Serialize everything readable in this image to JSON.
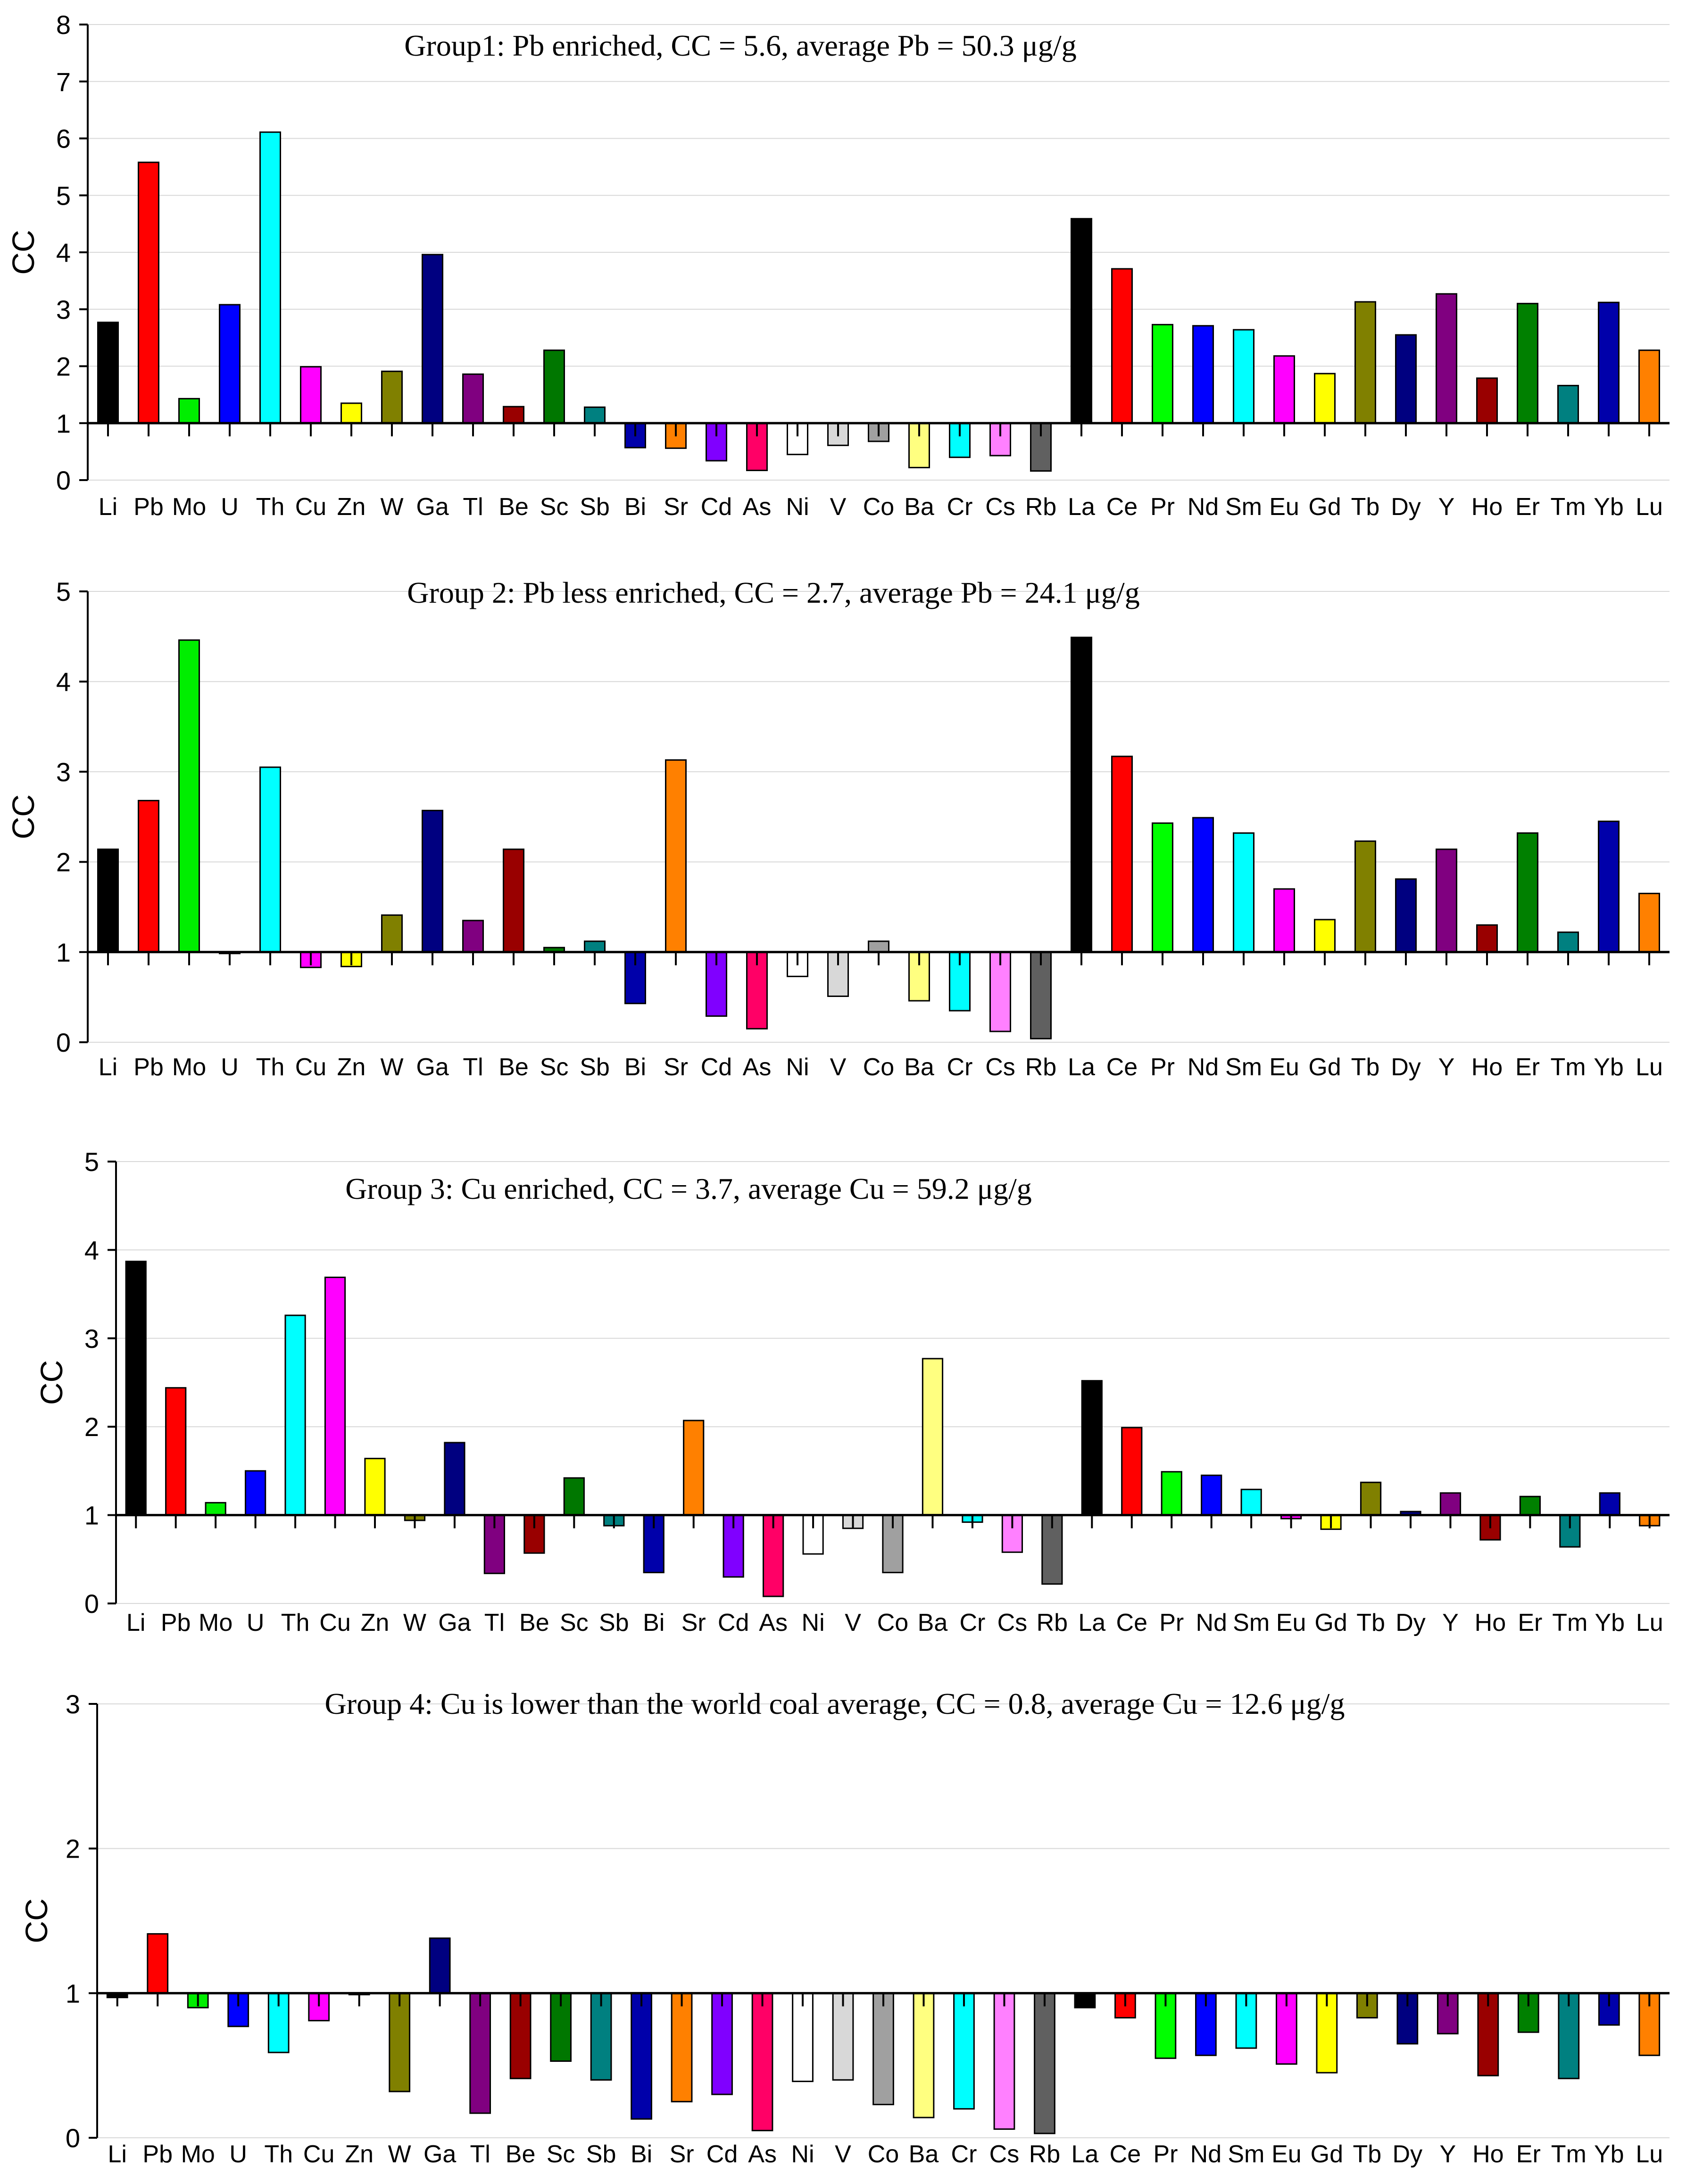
{
  "figure": {
    "type": "bar",
    "description_panels": 4
  },
  "chart_data": [
    {
      "type": "bar",
      "title": "Group1: Pb enriched, CC = 5.6, average Pb = 50.3 μg/g",
      "xlabel": "",
      "ylabel": "CC",
      "ylim": [
        0,
        8
      ],
      "yticks": [
        0,
        1,
        2,
        3,
        4,
        5,
        6,
        7,
        8
      ],
      "baseline": 1,
      "grid": true,
      "categories": [
        "Li",
        "Pb",
        "Mo",
        "U",
        "Th",
        "Cu",
        "Zn",
        "W",
        "Ga",
        "Tl",
        "Be",
        "Sc",
        "Sb",
        "Bi",
        "Sr",
        "Cd",
        "As",
        "Ni",
        "V",
        "Co",
        "Ba",
        "Cr",
        "Cs",
        "Rb",
        "La",
        "Ce",
        "Pr",
        "Nd",
        "Sm",
        "Eu",
        "Gd",
        "Tb",
        "Dy",
        "Y",
        "Ho",
        "Er",
        "Tm",
        "Yb",
        "Lu"
      ],
      "values": [
        2.77,
        5.58,
        1.43,
        3.08,
        6.11,
        1.99,
        1.35,
        1.91,
        3.96,
        1.86,
        1.29,
        2.28,
        1.28,
        0.57,
        0.56,
        0.34,
        0.17,
        0.45,
        0.61,
        0.68,
        0.22,
        0.4,
        0.43,
        0.16,
        4.59,
        3.71,
        2.73,
        2.71,
        2.64,
        2.18,
        1.87,
        3.13,
        2.55,
        3.27,
        1.79,
        3.1,
        1.66,
        3.12,
        2.28
      ]
    },
    {
      "type": "bar",
      "title": "Group 2: Pb less enriched, CC = 2.7, average Pb = 24.1 μg/g",
      "xlabel": "",
      "ylabel": "CC",
      "ylim": [
        0,
        5
      ],
      "yticks": [
        0,
        1,
        2,
        3,
        4,
        5
      ],
      "baseline": 1,
      "grid": true,
      "categories": [
        "Li",
        "Pb",
        "Mo",
        "U",
        "Th",
        "Cu",
        "Zn",
        "W",
        "Ga",
        "Tl",
        "Be",
        "Sc",
        "Sb",
        "Bi",
        "Sr",
        "Cd",
        "As",
        "Ni",
        "V",
        "Co",
        "Ba",
        "Cr",
        "Cs",
        "Rb",
        "La",
        "Ce",
        "Pr",
        "Nd",
        "Sm",
        "Eu",
        "Gd",
        "Tb",
        "Dy",
        "Y",
        "Ho",
        "Er",
        "Tm",
        "Yb",
        "Lu"
      ],
      "values": [
        2.14,
        2.68,
        4.46,
        1.0,
        3.05,
        0.83,
        0.84,
        1.41,
        2.57,
        1.35,
        2.14,
        1.05,
        1.12,
        0.43,
        3.13,
        0.29,
        0.15,
        0.73,
        0.51,
        1.12,
        0.46,
        0.35,
        0.12,
        0.04,
        4.49,
        3.17,
        2.43,
        2.49,
        2.32,
        1.7,
        1.36,
        2.23,
        1.81,
        2.14,
        1.3,
        2.32,
        1.22,
        2.45,
        1.65
      ]
    },
    {
      "type": "bar",
      "title": "Group 3: Cu enriched, CC = 3.7, average Cu = 59.2 μg/g",
      "xlabel": "",
      "ylabel": "CC",
      "ylim": [
        0,
        5
      ],
      "yticks": [
        0,
        1,
        2,
        3,
        4,
        5
      ],
      "baseline": 1,
      "grid": true,
      "categories": [
        "Li",
        "Pb",
        "Mo",
        "U",
        "Th",
        "Cu",
        "Zn",
        "W",
        "Ga",
        "Tl",
        "Be",
        "Sc",
        "Sb",
        "Bi",
        "Sr",
        "Cd",
        "As",
        "Ni",
        "V",
        "Co",
        "Ba",
        "Cr",
        "Cs",
        "Rb",
        "La",
        "Ce",
        "Pr",
        "Nd",
        "Sm",
        "Eu",
        "Gd",
        "Tb",
        "Dy",
        "Y",
        "Ho",
        "Er",
        "Tm",
        "Yb",
        "Lu"
      ],
      "values": [
        3.87,
        2.44,
        1.14,
        1.5,
        3.26,
        3.69,
        1.64,
        0.94,
        1.82,
        0.34,
        0.57,
        1.42,
        0.88,
        0.35,
        2.07,
        0.3,
        0.08,
        0.56,
        0.85,
        0.35,
        2.77,
        0.92,
        0.58,
        0.22,
        2.52,
        1.99,
        1.49,
        1.45,
        1.29,
        0.96,
        0.84,
        1.37,
        1.04,
        1.25,
        0.72,
        1.21,
        0.64,
        1.25,
        0.88
      ]
    },
    {
      "type": "bar",
      "title": "Group 4: Cu is lower than the world coal average, CC = 0.8, average Cu = 12.6 μg/g",
      "xlabel": "",
      "ylabel": "CC",
      "ylim": [
        0,
        3
      ],
      "yticks": [
        0,
        1,
        2,
        3
      ],
      "baseline": 1,
      "grid": true,
      "categories": [
        "Li",
        "Pb",
        "Mo",
        "U",
        "Th",
        "Cu",
        "Zn",
        "W",
        "Ga",
        "Tl",
        "Be",
        "Sc",
        "Sb",
        "Bi",
        "Sr",
        "Cd",
        "As",
        "Ni",
        "V",
        "Co",
        "Ba",
        "Cr",
        "Cs",
        "Rb",
        "La",
        "Ce",
        "Pr",
        "Nd",
        "Sm",
        "Eu",
        "Gd",
        "Tb",
        "Dy",
        "Y",
        "Ho",
        "Er",
        "Tm",
        "Yb",
        "Lu"
      ],
      "values": [
        0.97,
        1.41,
        0.9,
        0.77,
        0.59,
        0.81,
        0.99,
        0.32,
        1.38,
        0.17,
        0.41,
        0.53,
        0.4,
        0.13,
        0.25,
        0.3,
        0.05,
        0.39,
        0.4,
        0.23,
        0.14,
        0.2,
        0.06,
        0.03,
        0.9,
        0.83,
        0.55,
        0.57,
        0.62,
        0.51,
        0.45,
        0.83,
        0.65,
        0.72,
        0.43,
        0.73,
        0.41,
        0.78,
        0.57
      ]
    }
  ],
  "series_colors": [
    "#000000",
    "#ff0000",
    "#00ee00",
    "#0000ff",
    "#00ffff",
    "#ff00ff",
    "#ffff00",
    "#808000",
    "#000080",
    "#800080",
    "#990000",
    "#007700",
    "#008080",
    "#0000aa",
    "#ff8000",
    "#8000ff",
    "#ff0066",
    "#ffffff",
    "#d8d8d8",
    "#a0a0a0",
    "#ffff80",
    "#00ffff",
    "#ff80ff",
    "#606060",
    "#000000",
    "#ff0000",
    "#00ff00",
    "#0000ff",
    "#00ffff",
    "#ff00ff",
    "#ffff00",
    "#808000",
    "#000080",
    "#800080",
    "#990000",
    "#008000",
    "#008080",
    "#0000aa",
    "#ff8000"
  ]
}
